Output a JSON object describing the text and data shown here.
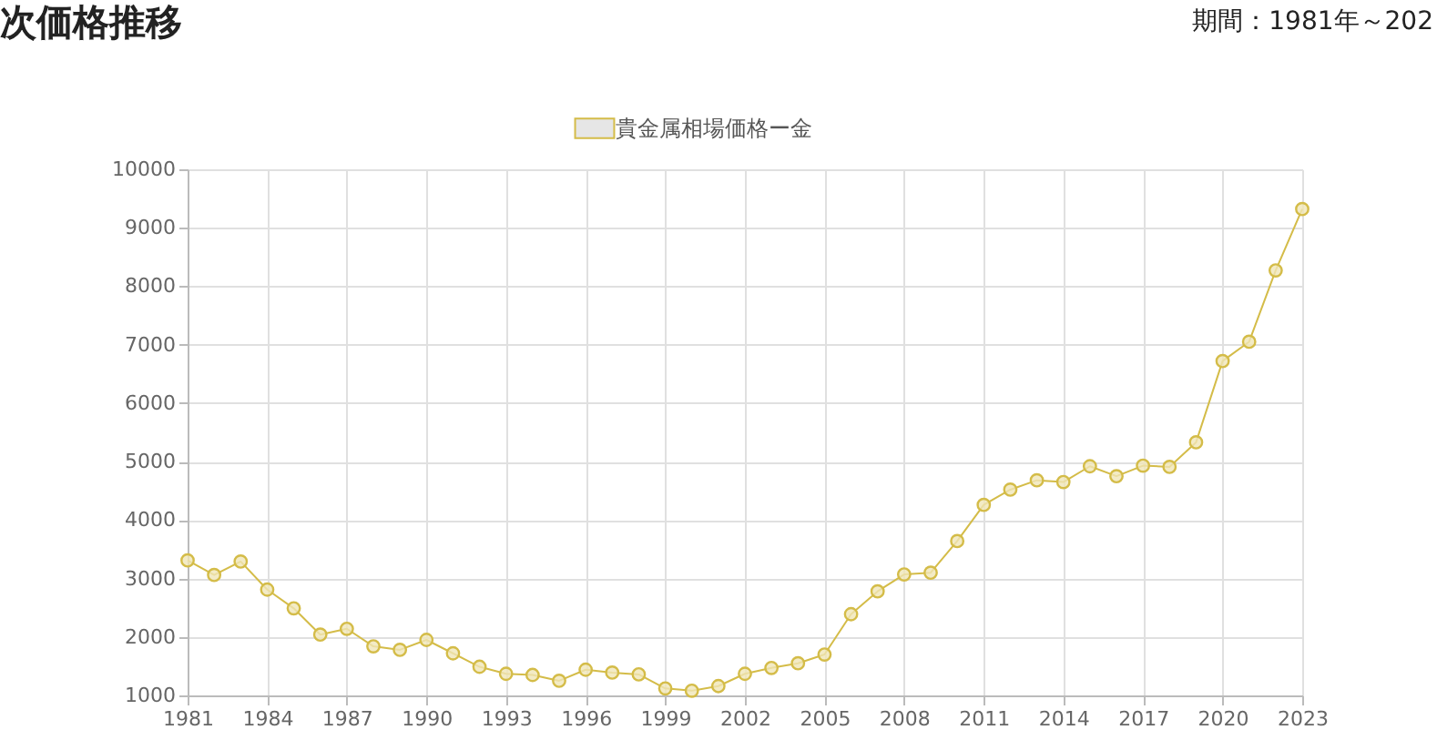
{
  "chart_data": {
    "type": "line",
    "title": "次価格推移",
    "subtitle": "期間：1981年～202",
    "x": [
      1981,
      1982,
      1983,
      1984,
      1985,
      1986,
      1987,
      1988,
      1989,
      1990,
      1991,
      1992,
      1993,
      1994,
      1995,
      1996,
      1997,
      1998,
      1999,
      2000,
      2001,
      2002,
      2003,
      2004,
      2005,
      2006,
      2007,
      2008,
      2009,
      2010,
      2011,
      2012,
      2013,
      2014,
      2015,
      2016,
      2017,
      2018,
      2019,
      2020,
      2021,
      2022,
      2023
    ],
    "series": [
      {
        "name": "貴金属相場価格ー金",
        "color": "#d4bc48",
        "values": [
          3310,
          3060,
          3290,
          2810,
          2490,
          2040,
          2140,
          1840,
          1780,
          1950,
          1720,
          1490,
          1370,
          1350,
          1250,
          1440,
          1390,
          1360,
          1120,
          1080,
          1160,
          1370,
          1470,
          1550,
          1700,
          2390,
          2780,
          3070,
          3100,
          3640,
          4260,
          4520,
          4680,
          4650,
          4920,
          4750,
          4930,
          4910,
          5330,
          6720,
          7050,
          8270,
          9320
        ]
      }
    ],
    "xlim": [
      1981,
      2023
    ],
    "xticks": [
      1981,
      1984,
      1987,
      1990,
      1993,
      1996,
      1999,
      2002,
      2005,
      2008,
      2011,
      2014,
      2017,
      2020,
      2023
    ],
    "ylim": [
      1000,
      10000
    ],
    "yticks": [
      1000,
      2000,
      3000,
      4000,
      5000,
      6000,
      7000,
      8000,
      9000,
      10000
    ],
    "grid": true,
    "legend": "top",
    "marker": "circle",
    "line_style": "solid"
  }
}
